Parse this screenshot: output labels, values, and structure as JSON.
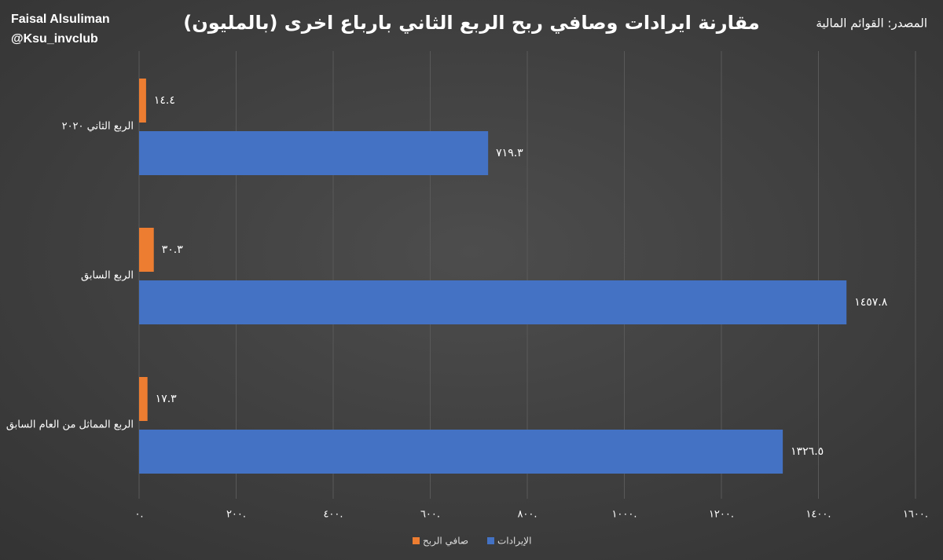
{
  "chart_data": {
    "type": "bar",
    "orientation": "horizontal",
    "title": "مقارنة ايرادات وصافي ربح الربع الثاني بارباع اخرى (بالمليون)",
    "author": "Faisal Alsuliman",
    "handle": "@Ksu_invclub",
    "source": "المصدر: القوائم المالية",
    "categories": [
      "الربع الثاني ٢٠٢٠",
      "الربع السابق",
      "الربع المماثل من العام السابق"
    ],
    "series": [
      {
        "name": "صافي الربح",
        "color": "#ed7d31",
        "values": [
          14.4,
          30.3,
          17.3
        ],
        "value_labels": [
          "١٤.٤",
          "٣٠.٣",
          "١٧.٣"
        ]
      },
      {
        "name": "الإيرادات",
        "color": "#4472c4",
        "values": [
          719.3,
          1457.8,
          1326.5
        ],
        "value_labels": [
          "٧١٩.٣",
          "١٤٥٧.٨",
          "١٣٢٦.٥"
        ]
      }
    ],
    "xlim": [
      0,
      1600
    ],
    "xticks": [
      {
        "value": 0,
        "label": "٠."
      },
      {
        "value": 200,
        "label": "٢٠٠."
      },
      {
        "value": 400,
        "label": "٤٠٠."
      },
      {
        "value": 600,
        "label": "٦٠٠."
      },
      {
        "value": 800,
        "label": "٨٠٠."
      },
      {
        "value": 1000,
        "label": "١٠٠٠."
      },
      {
        "value": 1200,
        "label": "١٢٠٠."
      },
      {
        "value": 1400,
        "label": "١٤٠٠."
      },
      {
        "value": 1600,
        "label": "١٦٠٠."
      }
    ],
    "grid": true
  }
}
